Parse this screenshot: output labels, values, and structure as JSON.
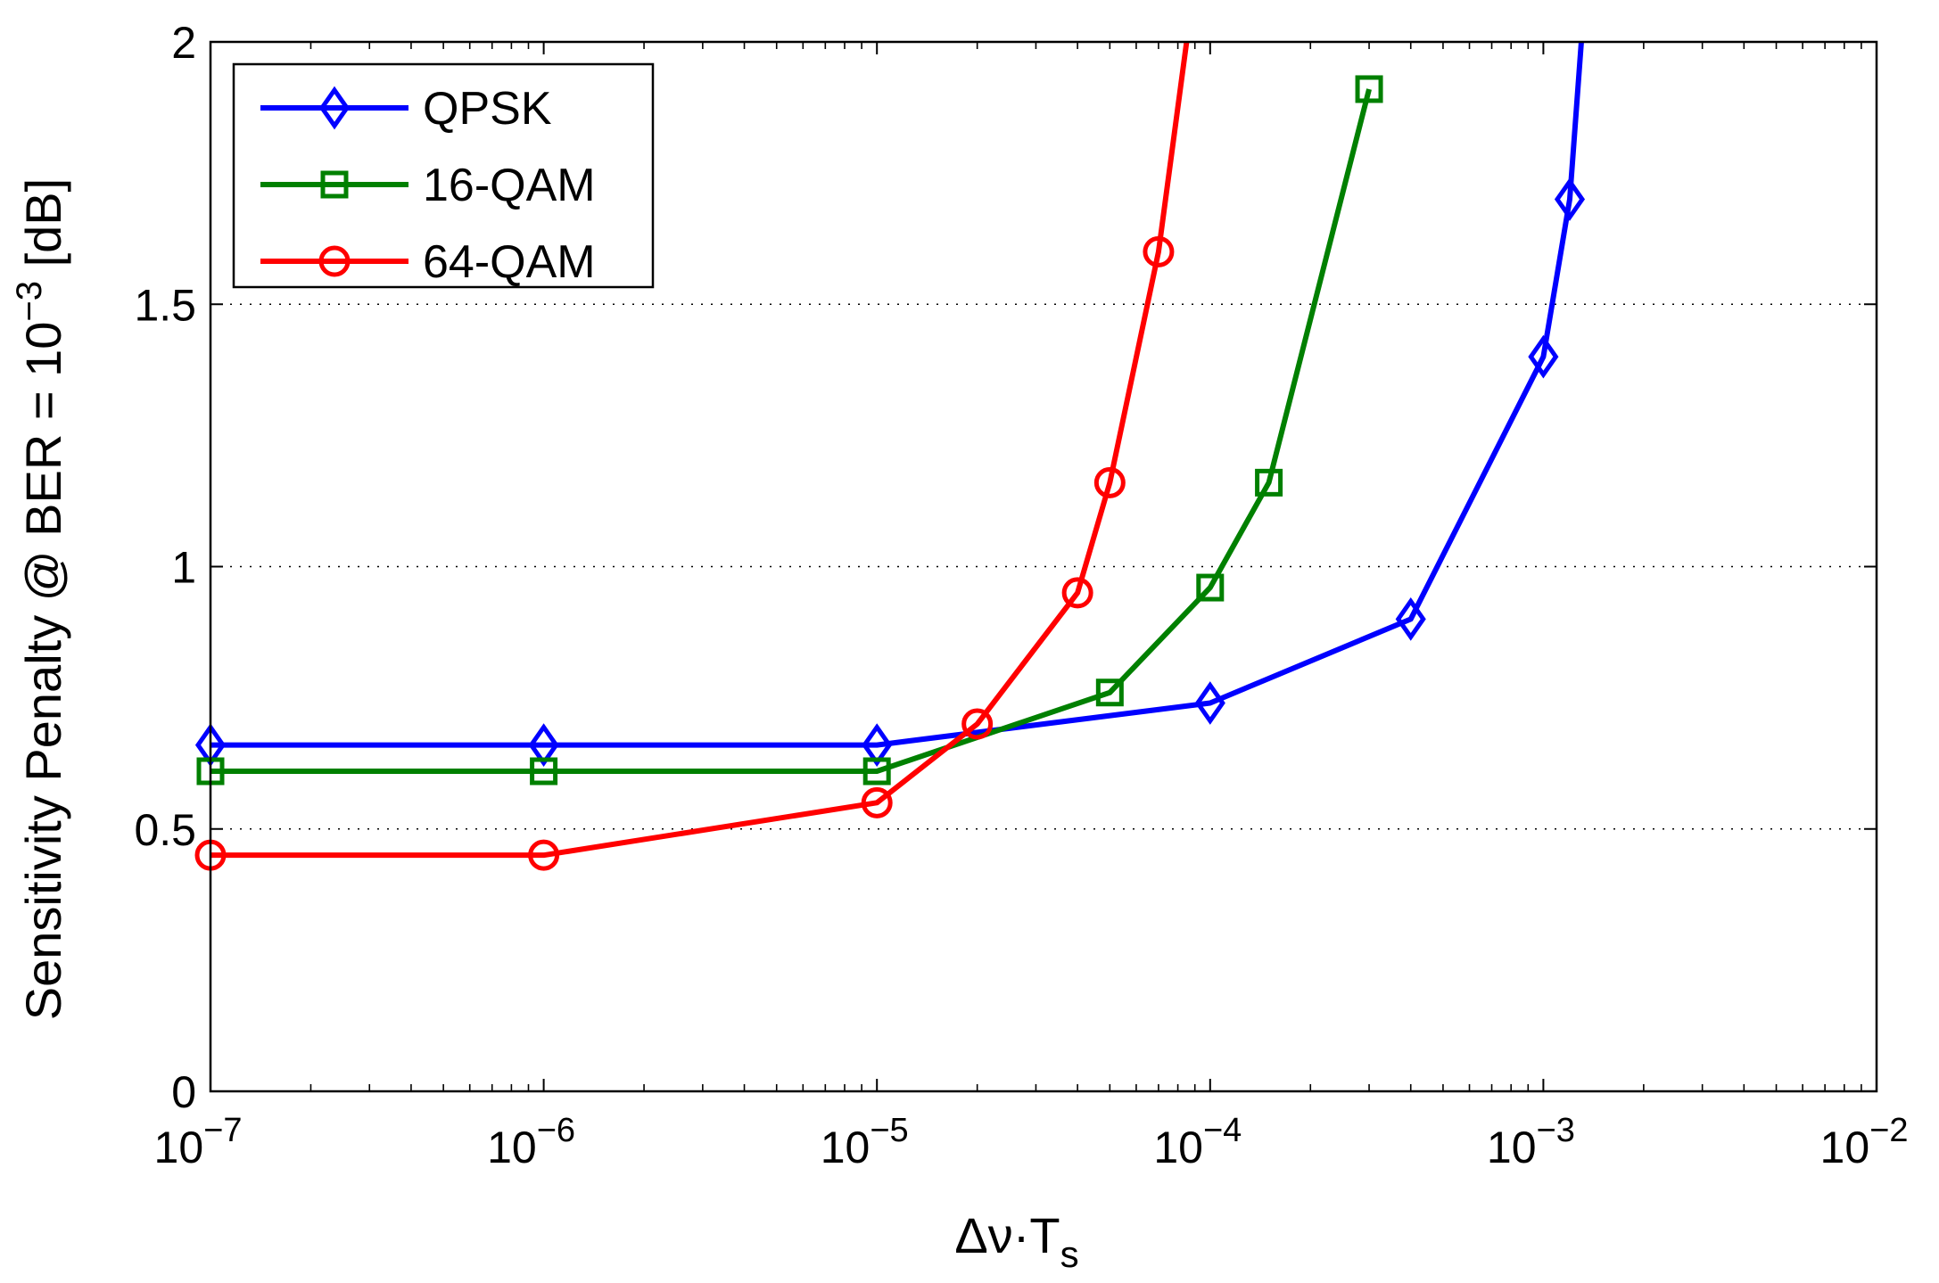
{
  "chart_data": {
    "type": "line",
    "title": "",
    "xscale": "log",
    "xlim": [
      1e-07,
      0.01
    ],
    "ylim": [
      0,
      2
    ],
    "xlabel": {
      "base": "Δν·T",
      "subscript": "s"
    },
    "ylabel": {
      "prefix": "Sensitivity Penalty @ BER = 10",
      "superscript": "−3",
      "suffix": " [dB]"
    },
    "x_ticks": [
      {
        "value": 1e-07,
        "base": "10",
        "exp": "−7"
      },
      {
        "value": 1e-06,
        "base": "10",
        "exp": "−6"
      },
      {
        "value": 1e-05,
        "base": "10",
        "exp": "−5"
      },
      {
        "value": 0.0001,
        "base": "10",
        "exp": "−4"
      },
      {
        "value": 0.001,
        "base": "10",
        "exp": "−3"
      },
      {
        "value": 0.01,
        "base": "10",
        "exp": "−2"
      }
    ],
    "y_ticks": [
      {
        "value": 0,
        "label": "0"
      },
      {
        "value": 0.5,
        "label": "0.5"
      },
      {
        "value": 1,
        "label": "1"
      },
      {
        "value": 1.5,
        "label": "1.5"
      },
      {
        "value": 2,
        "label": "2"
      }
    ],
    "grid": "y-dotted",
    "legend_position": "top-left",
    "series": [
      {
        "name": "QPSK",
        "color": "#0000ff",
        "marker": "diamond",
        "x": [
          1e-07,
          1e-06,
          1e-05,
          0.0001,
          0.0004,
          0.001,
          0.0012,
          0.0013
        ],
        "y": [
          0.66,
          0.66,
          0.66,
          0.74,
          0.9,
          1.4,
          1.7,
          2.0
        ],
        "markers_at": [
          0,
          1,
          2,
          3,
          4,
          5,
          6
        ]
      },
      {
        "name": "16-QAM",
        "color": "#008000",
        "marker": "square",
        "x": [
          1e-07,
          1e-06,
          1e-05,
          5e-05,
          0.0001,
          0.00015,
          0.0003
        ],
        "y": [
          0.61,
          0.61,
          0.61,
          0.76,
          0.96,
          1.16,
          1.91
        ],
        "markers_at": [
          0,
          1,
          2,
          3,
          4,
          5,
          6
        ]
      },
      {
        "name": "64-QAM",
        "color": "#ff0000",
        "marker": "circle",
        "x": [
          1e-07,
          1e-06,
          1e-05,
          2e-05,
          4e-05,
          5e-05,
          7e-05,
          8.5e-05
        ],
        "y": [
          0.45,
          0.45,
          0.55,
          0.7,
          0.95,
          1.16,
          1.6,
          2.0
        ],
        "markers_at": [
          0,
          1,
          2,
          3,
          4,
          5,
          6
        ]
      }
    ]
  }
}
